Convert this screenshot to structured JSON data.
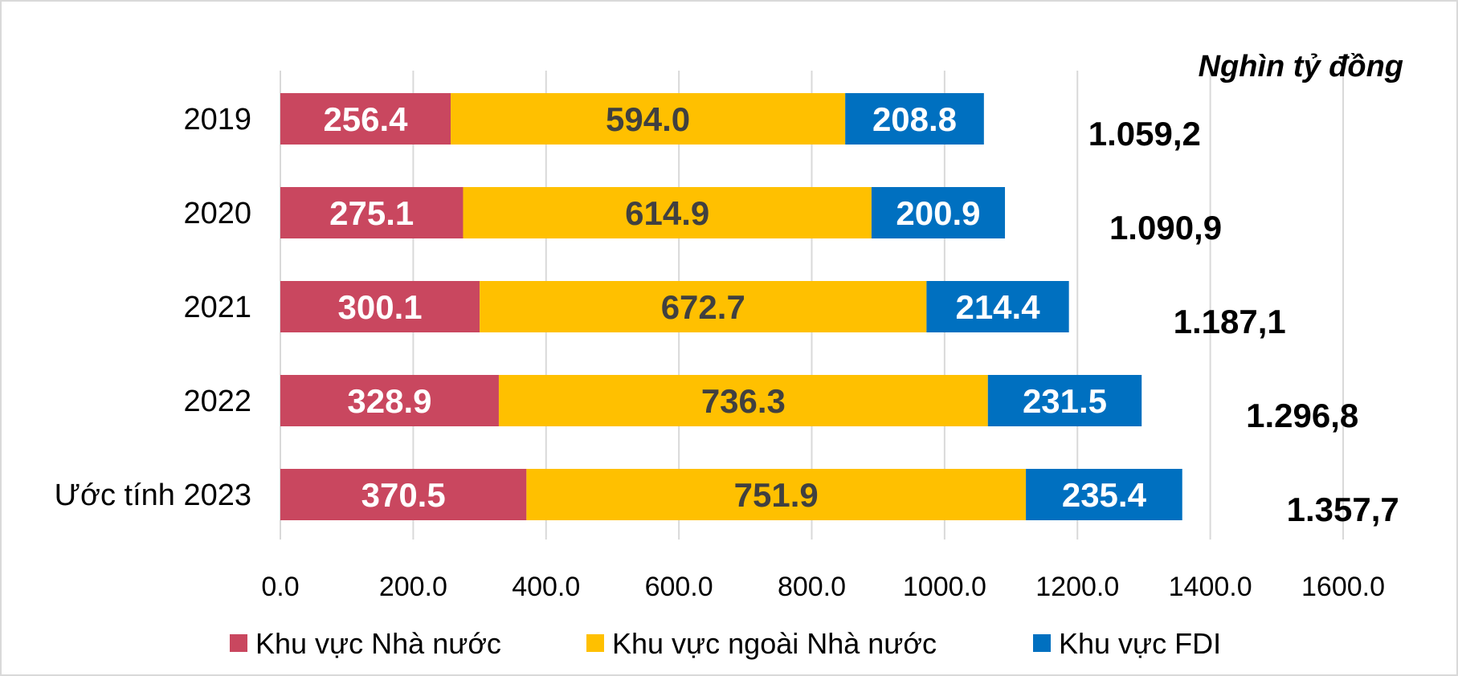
{
  "chart_data": {
    "type": "bar",
    "orientation": "horizontal",
    "stacked": true,
    "unit_label": "Nghìn tỷ đồng",
    "categories": [
      "2019",
      "2020",
      "2021",
      "2022",
      "Ước tính 2023"
    ],
    "series": [
      {
        "name": "Khu vực Nhà nước",
        "color": "#c9475f",
        "label_color": "#ffffff",
        "values": [
          256.4,
          275.1,
          300.1,
          328.9,
          370.5
        ],
        "labels": [
          "256.4",
          "275.1",
          "300.1",
          "328.9",
          "370.5"
        ]
      },
      {
        "name": "Khu vực ngoài Nhà nước",
        "color": "#ffc000",
        "label_color": "#404040",
        "values": [
          594.0,
          614.9,
          672.7,
          736.3,
          751.9
        ],
        "labels": [
          "594.0",
          "614.9",
          "672.7",
          "736.3",
          "751.9"
        ]
      },
      {
        "name": "Khu vực FDI",
        "color": "#0070c0",
        "label_color": "#ffffff",
        "values": [
          208.8,
          200.9,
          214.4,
          231.5,
          235.4
        ],
        "labels": [
          "208.8",
          "200.9",
          "214.4",
          "231.5",
          "235.4"
        ]
      }
    ],
    "totals": [
      "1.059,2",
      "1.090,9",
      "1.187,1",
      "1.296,8",
      "1.357,7"
    ],
    "xlim": [
      0,
      1600
    ],
    "xticks": [
      0,
      200,
      400,
      600,
      800,
      1000,
      1200,
      1400,
      1600
    ],
    "xtick_labels": [
      "0.0",
      "200.0",
      "400.0",
      "600.0",
      "800.0",
      "1000.0",
      "1200.0",
      "1400.0",
      "1600.0"
    ],
    "grid": "vertical",
    "legend_position": "bottom"
  }
}
